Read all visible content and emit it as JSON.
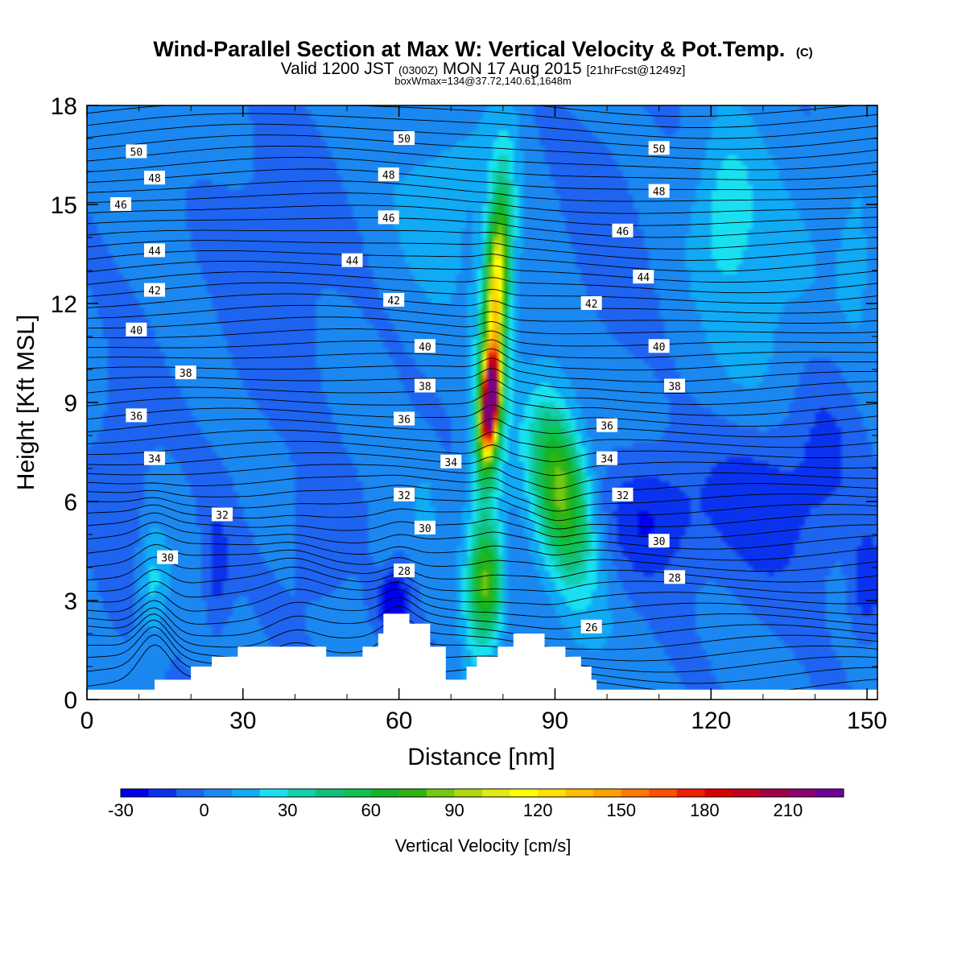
{
  "header": {
    "title": "Wind-Parallel Section at Max W: Vertical Velocity & Pot.Temp.",
    "copyright": "(C)",
    "valid_prefix": "Valid 1200 JST",
    "valid_utc": "(0300Z)",
    "valid_date": "MON 17 Aug 2015",
    "forecast": "[21hrFcst@1249z]",
    "box_info": "boxWmax=134@37.72,140.61,1648m"
  },
  "colors": {
    "vv_levels": [
      "#0000ee",
      "#0a32ee",
      "#1e64f0",
      "#1a88f0",
      "#10aaf5",
      "#18e0f0",
      "#10d0b0",
      "#10c07a",
      "#10c050",
      "#14b428",
      "#30b414",
      "#74c810",
      "#b0d810",
      "#e0ec10",
      "#ffff00",
      "#ffe000",
      "#ffc000",
      "#ffa000",
      "#ff7800",
      "#ff5000",
      "#f01e00",
      "#d80000",
      "#c0001e",
      "#a00046",
      "#8c006e",
      "#6e0096"
    ],
    "terrain": "#ffffff",
    "contour": "#000000"
  },
  "chart_data": {
    "type": "heatmap",
    "title": "Wind-Parallel Section at Max W: Vertical Velocity & Pot.Temp.",
    "xlabel": "Distance [nm]",
    "ylabel": "Height [Kft MSL]",
    "xlim": [
      0,
      152
    ],
    "ylim": [
      0,
      18
    ],
    "xticks": [
      "0",
      "30",
      "60",
      "90",
      "120",
      "150"
    ],
    "yticks": [
      "0",
      "3",
      "6",
      "9",
      "12",
      "15",
      "18"
    ],
    "colorbar": {
      "label": "Vertical Velocity [cm/s]",
      "ticks": [
        "-30",
        "0",
        "30",
        "60",
        "90",
        "120",
        "150",
        "180",
        "210"
      ],
      "min": -30,
      "max": 235,
      "step": 10
    },
    "vertical_velocity_features": [
      {
        "x": 77.5,
        "height_kft": 9.0,
        "peak_cm_s": 230
      },
      {
        "x": 78.0,
        "height_kft": 12.5,
        "peak_cm_s": 95
      },
      {
        "x": 91.0,
        "height_kft": 6.5,
        "peak_cm_s": 60
      },
      {
        "x": 77.0,
        "height_kft": 3.5,
        "peak_cm_s": 70
      },
      {
        "x": 12.5,
        "height_kft": 3.5,
        "peak_cm_s": 25
      },
      {
        "x": 123.0,
        "height_kft": 15.0,
        "peak_cm_s": 25
      },
      {
        "x": 58.5,
        "height_kft": 3.0,
        "peak_cm_s": -30
      },
      {
        "x": 110.0,
        "height_kft": 5.0,
        "peak_cm_s": -25
      }
    ],
    "terrain_kft": [
      [
        0,
        0.3
      ],
      [
        11,
        0.3
      ],
      [
        13,
        0.6
      ],
      [
        19,
        0.6
      ],
      [
        20,
        1.0
      ],
      [
        24,
        1.3
      ],
      [
        28,
        1.3
      ],
      [
        29,
        1.6
      ],
      [
        45,
        1.6
      ],
      [
        46,
        1.3
      ],
      [
        52,
        1.3
      ],
      [
        53,
        1.6
      ],
      [
        56,
        2.0
      ],
      [
        57,
        2.6
      ],
      [
        61,
        2.6
      ],
      [
        62,
        2.3
      ],
      [
        65,
        2.3
      ],
      [
        66,
        1.6
      ],
      [
        68,
        1.6
      ],
      [
        69,
        0.6
      ],
      [
        72,
        0.6
      ],
      [
        73,
        1.0
      ],
      [
        75,
        1.3
      ],
      [
        78,
        1.3
      ],
      [
        79,
        1.6
      ],
      [
        81,
        1.6
      ],
      [
        82,
        2.0
      ],
      [
        87,
        2.0
      ],
      [
        88,
        1.6
      ],
      [
        91,
        1.6
      ],
      [
        92,
        1.3
      ],
      [
        94,
        1.3
      ],
      [
        95,
        1.0
      ],
      [
        97,
        0.6
      ],
      [
        98,
        0.3
      ],
      [
        152,
        0.3
      ]
    ],
    "theta_labels": [
      {
        "text": "50",
        "x": 9.5,
        "y": 16.6
      },
      {
        "text": "48",
        "x": 13,
        "y": 15.8
      },
      {
        "text": "46",
        "x": 6.5,
        "y": 15.0
      },
      {
        "text": "44",
        "x": 13,
        "y": 13.6
      },
      {
        "text": "42",
        "x": 13,
        "y": 12.4
      },
      {
        "text": "40",
        "x": 9.5,
        "y": 11.2
      },
      {
        "text": "38",
        "x": 19,
        "y": 9.9
      },
      {
        "text": "36",
        "x": 9.5,
        "y": 8.6
      },
      {
        "text": "34",
        "x": 13,
        "y": 7.3
      },
      {
        "text": "32",
        "x": 26,
        "y": 5.6
      },
      {
        "text": "30",
        "x": 15.5,
        "y": 4.3
      },
      {
        "text": "50",
        "x": 61,
        "y": 17.0
      },
      {
        "text": "48",
        "x": 58,
        "y": 15.9
      },
      {
        "text": "46",
        "x": 58,
        "y": 14.6
      },
      {
        "text": "44",
        "x": 51,
        "y": 13.3
      },
      {
        "text": "42",
        "x": 59,
        "y": 12.1
      },
      {
        "text": "40",
        "x": 65,
        "y": 10.7
      },
      {
        "text": "38",
        "x": 65,
        "y": 9.5
      },
      {
        "text": "36",
        "x": 61,
        "y": 8.5
      },
      {
        "text": "34",
        "x": 70,
        "y": 7.2
      },
      {
        "text": "32",
        "x": 61,
        "y": 6.2
      },
      {
        "text": "30",
        "x": 65,
        "y": 5.2
      },
      {
        "text": "28",
        "x": 61,
        "y": 3.9
      },
      {
        "text": "50",
        "x": 110,
        "y": 16.7
      },
      {
        "text": "48",
        "x": 110,
        "y": 15.4
      },
      {
        "text": "46",
        "x": 103,
        "y": 14.2
      },
      {
        "text": "44",
        "x": 107,
        "y": 12.8
      },
      {
        "text": "42",
        "x": 97,
        "y": 12.0
      },
      {
        "text": "40",
        "x": 110,
        "y": 10.7
      },
      {
        "text": "38",
        "x": 113,
        "y": 9.5
      },
      {
        "text": "36",
        "x": 100,
        "y": 8.3
      },
      {
        "text": "34",
        "x": 100,
        "y": 7.3
      },
      {
        "text": "32",
        "x": 103,
        "y": 6.2
      },
      {
        "text": "30",
        "x": 110,
        "y": 4.8
      },
      {
        "text": "28",
        "x": 113,
        "y": 3.7
      },
      {
        "text": "26",
        "x": 97,
        "y": 2.2
      }
    ]
  }
}
